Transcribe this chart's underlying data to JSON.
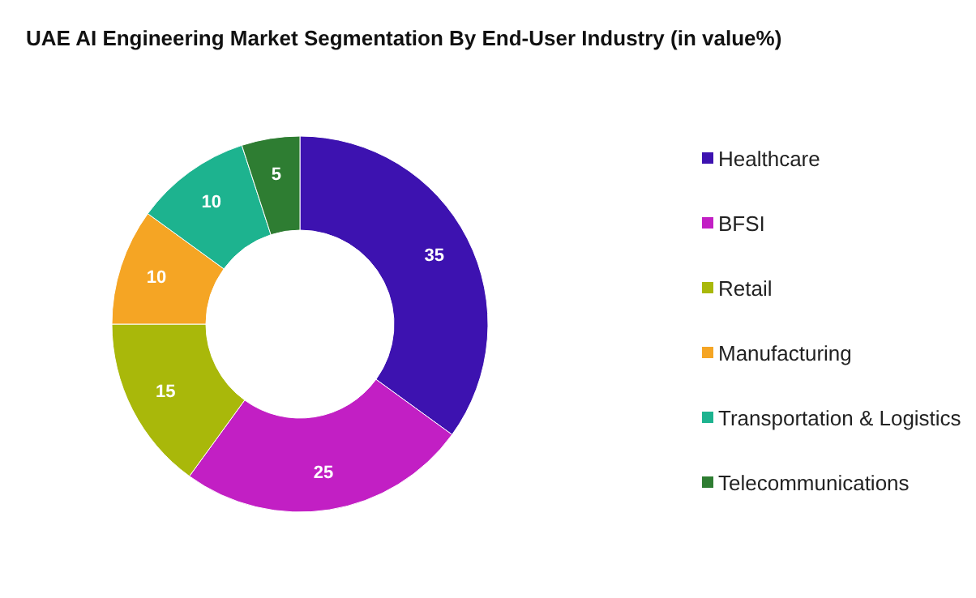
{
  "chart_data": {
    "type": "donut",
    "title": "UAE AI Engineering Market Segmentation By End-User Industry (in value%)",
    "categories": [
      "Healthcare",
      "BFSI",
      "Retail",
      "Manufacturing",
      "Transportation & Logistics",
      "Telecommunications"
    ],
    "values": [
      35,
      25,
      15,
      10,
      10,
      5
    ],
    "colors": [
      "#3d12b0",
      "#c21fc4",
      "#a9b80a",
      "#f5a524",
      "#1db38f",
      "#2e7d32"
    ],
    "data_labels": true,
    "legend": "right"
  }
}
